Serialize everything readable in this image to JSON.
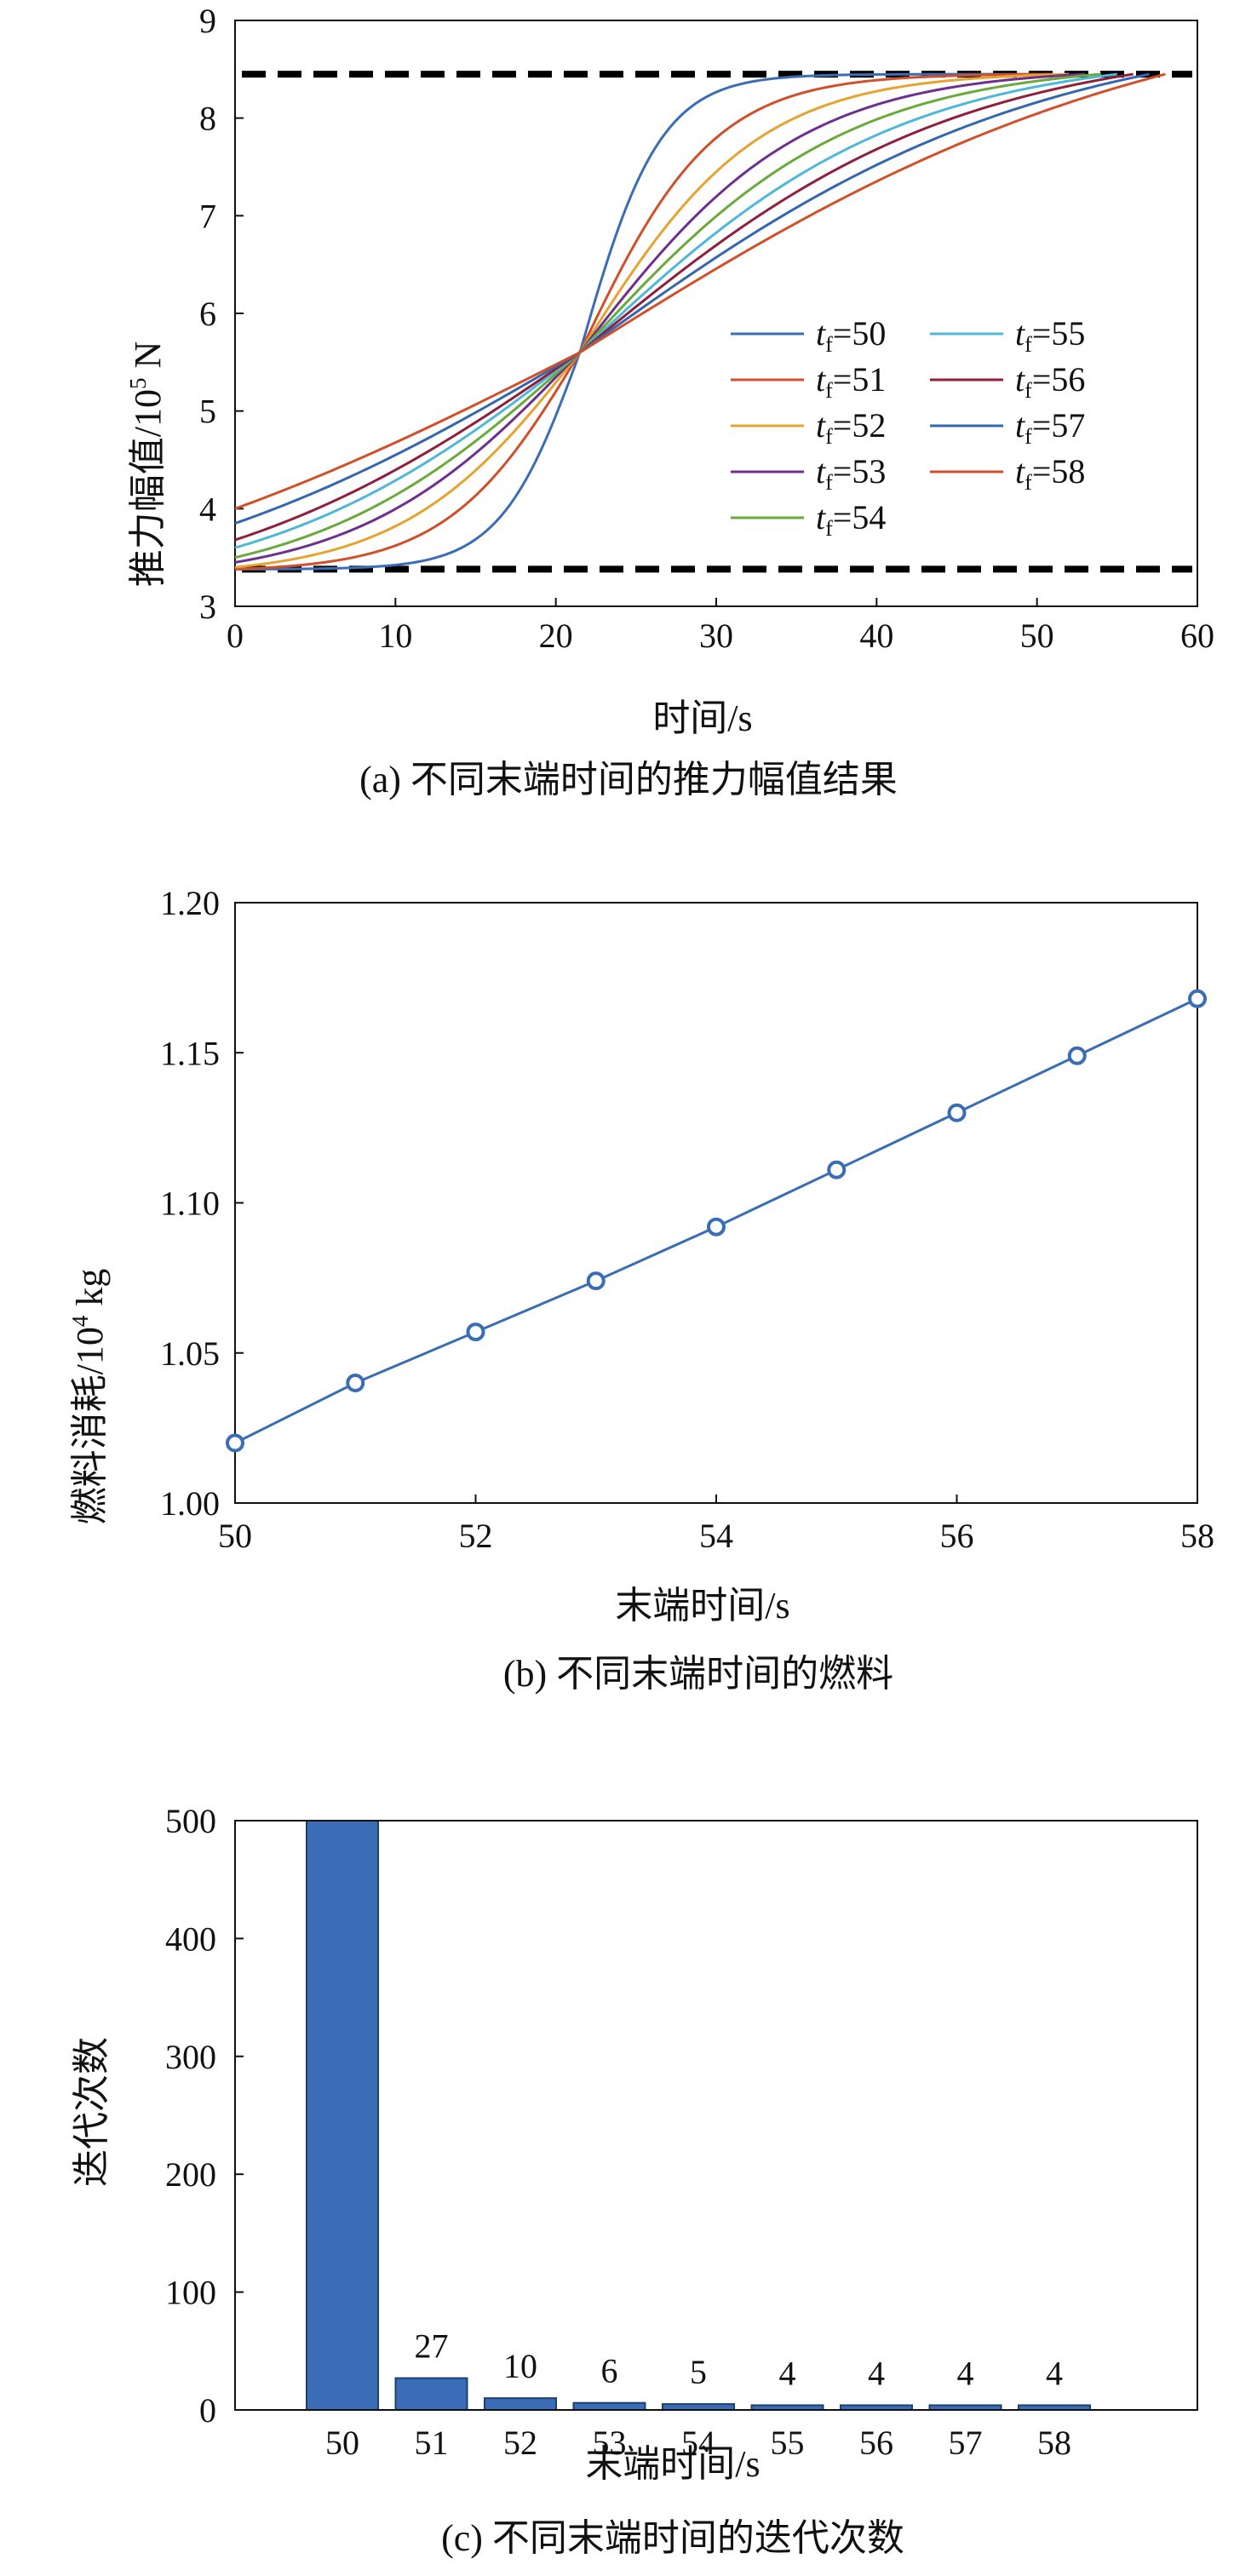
{
  "charts": {
    "a": {
      "caption": "(a) 不同末端时间的推力幅值结果",
      "xlabel": "时间/s",
      "ylabel_main": "推力幅值/10",
      "ylabel_sup": "5",
      "ylabel_unit": " N"
    },
    "b": {
      "caption": "(b) 不同末端时间的燃料",
      "xlabel": "末端时间/s",
      "ylabel_main": "燃料消耗/10",
      "ylabel_sup": "4",
      "ylabel_unit": " kg"
    },
    "c": {
      "caption": "(c) 不同末端时间的迭代次数",
      "xlabel": "末端时间/s",
      "ylabel": "迭代次数"
    }
  },
  "chart_data": [
    {
      "type": "line",
      "id": "a",
      "title": "(a) 不同末端时间的推力幅值结果",
      "xlabel": "时间/s",
      "ylabel": "推力幅值/10^5 N",
      "xlim": [
        0,
        60
      ],
      "ylim": [
        3,
        9
      ],
      "xticks": [
        0,
        10,
        20,
        30,
        40,
        50,
        60
      ],
      "yticks": [
        3,
        4,
        5,
        6,
        7,
        8,
        9
      ],
      "legend_position": "lower-right",
      "legend_prefix": "t",
      "legend_subscript": "f",
      "bounds": {
        "lower": 3.38,
        "upper": 8.45,
        "style": "dashed",
        "color": "#000000"
      },
      "crossing": {
        "x": 21.5,
        "y": 5.6
      },
      "series": [
        {
          "name": "=50",
          "tf": 50,
          "color": "#3a6db5",
          "y0": 3.38,
          "k": 0.4
        },
        {
          "name": "=51",
          "tf": 51,
          "color": "#d1502a",
          "y0": 3.38,
          "k": 0.24
        },
        {
          "name": "=52",
          "tf": 52,
          "color": "#e5a42f",
          "y0": 3.4,
          "k": 0.18
        },
        {
          "name": "=53",
          "tf": 53,
          "color": "#6f2f8f",
          "y0": 3.45,
          "k": 0.145
        },
        {
          "name": "=54",
          "tf": 54,
          "color": "#6aaa3c",
          "y0": 3.5,
          "k": 0.12
        },
        {
          "name": "=55",
          "tf": 55,
          "color": "#4fb8d8",
          "y0": 3.6,
          "k": 0.1
        },
        {
          "name": "=56",
          "tf": 56,
          "color": "#8f1f3a",
          "y0": 3.68,
          "k": 0.085
        },
        {
          "name": "=57",
          "tf": 57,
          "color": "#3467b0",
          "y0": 3.85,
          "k": 0.07
        },
        {
          "name": "=58",
          "tf": 58,
          "color": "#d1502a",
          "y0": 4.0,
          "k": 0.055
        }
      ]
    },
    {
      "type": "line",
      "id": "b",
      "title": "(b) 不同末端时间的燃料",
      "xlabel": "末端时间/s",
      "ylabel": "燃料消耗/10^4 kg",
      "xlim": [
        50,
        58
      ],
      "ylim": [
        1.0,
        1.2
      ],
      "xticks": [
        50,
        52,
        54,
        56,
        58
      ],
      "yticks": [
        "1.00",
        "1.05",
        "1.10",
        "1.15",
        "1.20"
      ],
      "x": [
        50,
        51,
        52,
        53,
        54,
        55,
        56,
        57,
        58
      ],
      "values": [
        1.02,
        1.04,
        1.057,
        1.074,
        1.092,
        1.111,
        1.13,
        1.149,
        1.168
      ],
      "color": "#3a6db5",
      "marker": "circle"
    },
    {
      "type": "bar",
      "id": "c",
      "title": "(c) 不同末端时间的迭代次数",
      "xlabel": "末端时间/s",
      "ylabel": "迭代次数",
      "ylim": [
        0,
        500
      ],
      "yticks": [
        0,
        100,
        200,
        300,
        400,
        500
      ],
      "categories": [
        "50",
        "51",
        "52",
        "53",
        "54",
        "55",
        "56",
        "57",
        "58"
      ],
      "values": [
        500,
        27,
        10,
        6,
        5,
        4,
        4,
        4,
        4
      ],
      "data_labels": [
        "",
        "27",
        "10",
        "6",
        "5",
        "4",
        "4",
        "4",
        "4"
      ],
      "color": "#3a6db5"
    }
  ]
}
